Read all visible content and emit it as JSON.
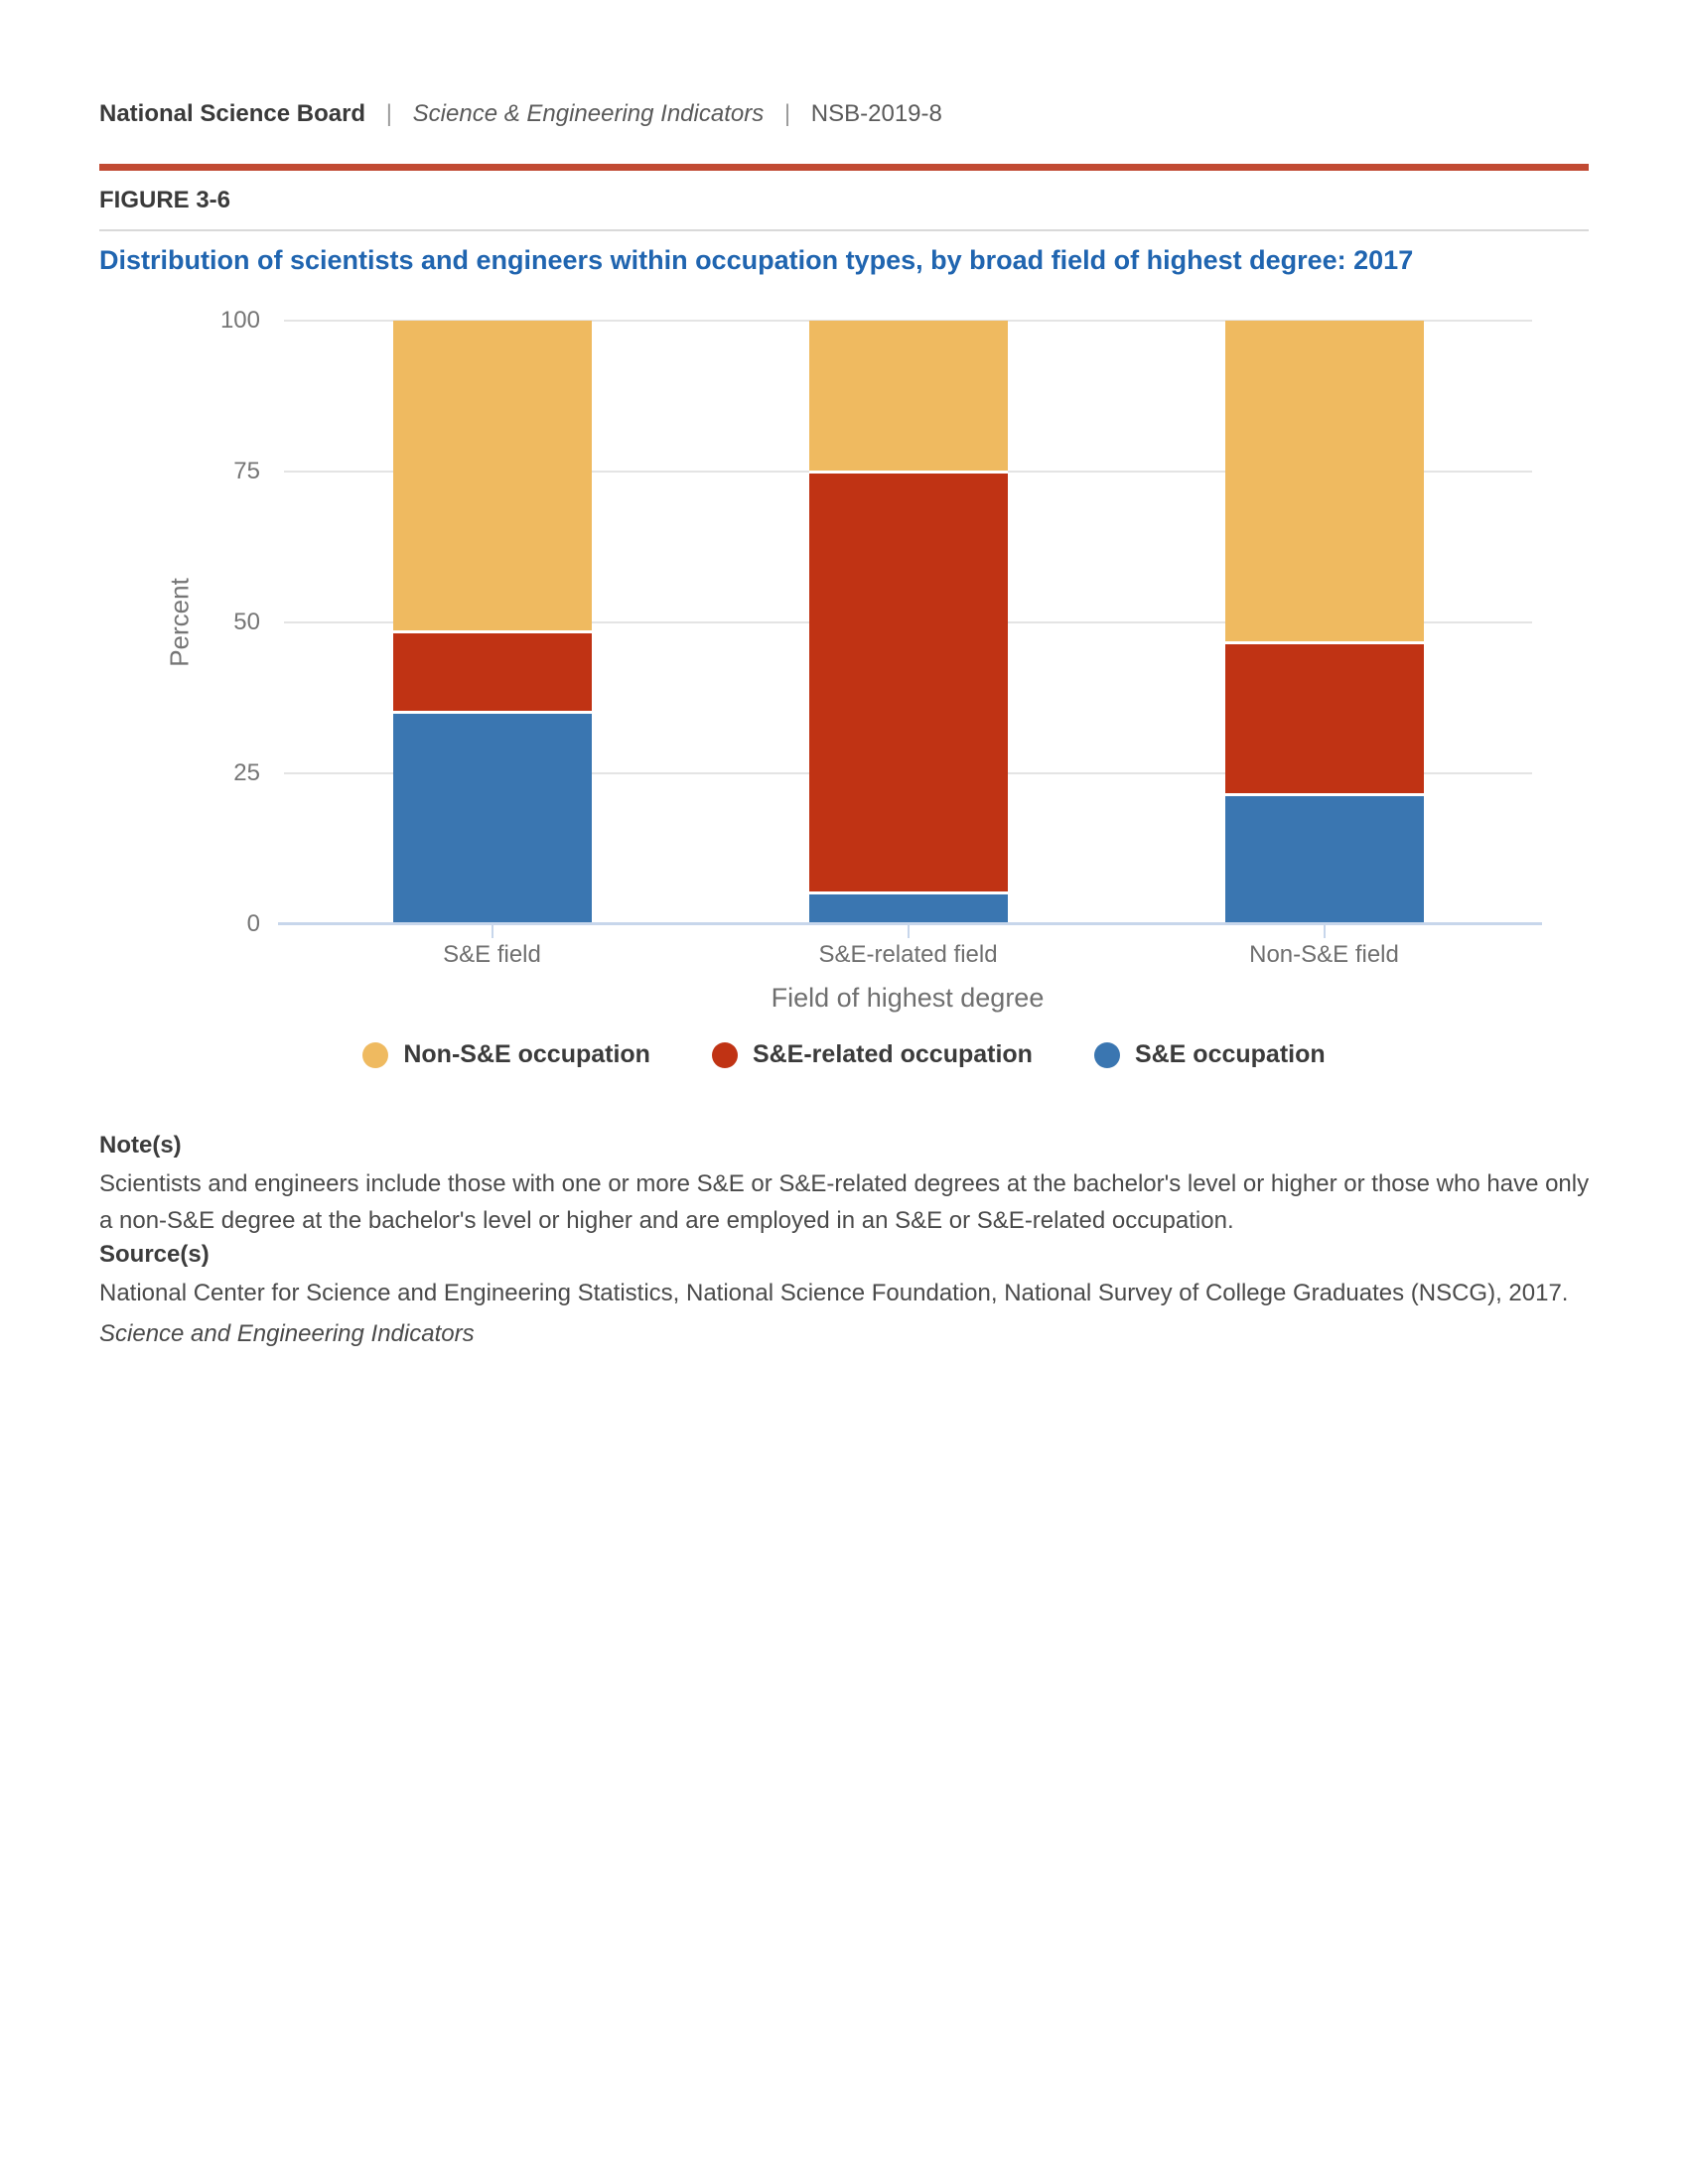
{
  "page": {
    "header": {
      "brand": "National Science Board",
      "divider": "|",
      "publication": "Science & Engineering Indicators",
      "report_id": "NSB-2019-8"
    },
    "figure_label": "FIGURE 3-6",
    "title": "Distribution of scientists and engineers within occupation types, by broad field of highest degree: 2017",
    "notes": {
      "heading": "Note(s)",
      "body": "Scientists and engineers include those with one or more S&E or S&E-related degrees at the bachelor's level or higher or those who have only a non-S&E degree at the bachelor's level or higher and are employed in an S&E or S&E-related occupation."
    },
    "source": {
      "heading": "Source(s)",
      "body": "National Center for Science and Engineering Statistics, National Science Foundation, National Survey of College Graduates (NSCG), 2017."
    },
    "footer_publication": "Science and Engineering Indicators"
  },
  "chart_data": {
    "type": "bar",
    "stacked": true,
    "title": "Distribution of scientists and engineers within occupation types, by broad field of highest degree: 2017",
    "categories": [
      "S&E field",
      "S&E-related field",
      "Non-S&E field"
    ],
    "series": [
      {
        "name": "S&E occupation",
        "color": "#3A76B1",
        "values": [
          35.4,
          5.4,
          21.7
        ]
      },
      {
        "name": "S&E-related occupation",
        "color": "#C03314",
        "values": [
          13.3,
          69.7,
          25.2
        ]
      },
      {
        "name": "Non-S&E occupation",
        "color": "#EFBA60",
        "values": [
          51.3,
          24.9,
          53.1
        ]
      }
    ],
    "xlabel": "Field of highest degree",
    "ylabel": "Percent",
    "ylim": [
      0,
      100
    ],
    "yticks": [
      0,
      25,
      50,
      75,
      100
    ],
    "grid": true,
    "legend_position": "bottom"
  },
  "style": {
    "accent_rule_color": "#C14A33",
    "title_color": "#2065B0",
    "segment_gap_color": "#FFFFFF",
    "gridline_color": "#E4E4E4",
    "baseline_color": "#C7D6EB"
  }
}
